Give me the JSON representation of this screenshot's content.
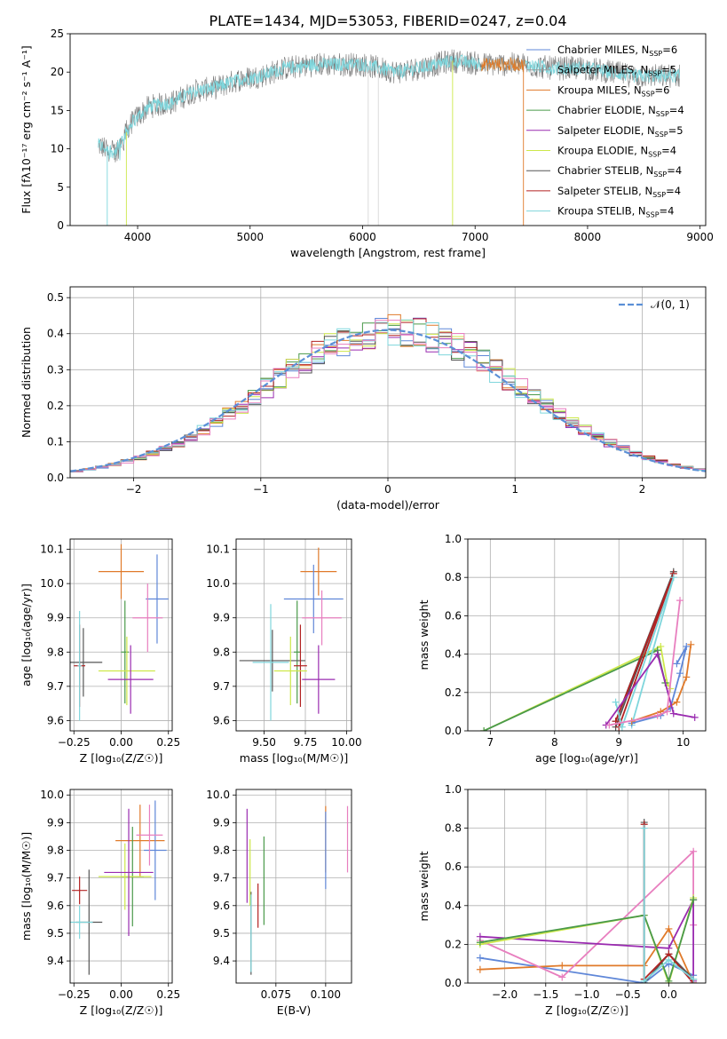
{
  "figure_title": "PLATE=1434, MJD=53053, FIBERID=0247, z=0.04",
  "colors": {
    "chab_miles": "#5f87d8",
    "salp_miles": "#d7d7d7",
    "krou_miles": "#e07a2a",
    "chab_elodie": "#4a9a4a",
    "salp_elodie": "#9a2bb0",
    "krou_elodie": "#cde84a",
    "chab_stelib": "#555555",
    "salp_stelib": "#b22222",
    "krou_stelib": "#7fd6dc",
    "pink": "#e87fbf",
    "gaussian": "#5b8fd6"
  },
  "legend_spectrum": [
    {
      "pre": "Chabrier MILES, N",
      "sub": "SSP",
      "post": "=6",
      "color": "#5f87d8"
    },
    {
      "pre": "Salpeter MILES, N",
      "sub": "SSP",
      "post": "=5",
      "color": "#999999"
    },
    {
      "pre": "Kroupa MILES, N",
      "sub": "SSP",
      "post": "=6",
      "color": "#e07a2a"
    },
    {
      "pre": "Chabrier ELODIE, N",
      "sub": "SSP",
      "post": "=4",
      "color": "#4a9a4a"
    },
    {
      "pre": "Salpeter ELODIE, N",
      "sub": "SSP",
      "post": "=5",
      "color": "#9a2bb0"
    },
    {
      "pre": "Kroupa ELODIE, N",
      "sub": "SSP",
      "post": "=4",
      "color": "#cde84a"
    },
    {
      "pre": "Chabrier STELIB, N",
      "sub": "SSP",
      "post": "=4",
      "color": "#555555"
    },
    {
      "pre": "Salpeter STELIB, N",
      "sub": "SSP",
      "post": "=4",
      "color": "#b22222"
    },
    {
      "pre": "Kroupa STELIB, N",
      "sub": "SSP",
      "post": "=4",
      "color": "#7fd6dc"
    }
  ],
  "legend_hist": "𝒩(0, 1)",
  "chart_data": [
    {
      "id": "spectrum",
      "type": "line",
      "xlabel": "wavelength [Angstrom, rest frame]",
      "ylabel": "Flux [fλ10⁻¹⁷ erg cm⁻² s⁻¹ A⁻¹]",
      "xlim": [
        3400,
        9050
      ],
      "ylim": [
        0,
        25
      ],
      "xticks": [
        4000,
        5000,
        6000,
        7000,
        8000,
        9000
      ],
      "yticks": [
        0,
        5,
        10,
        15,
        20,
        25
      ],
      "wave_range": [
        3650,
        8820
      ],
      "continuum": [
        [
          3650,
          10.5
        ],
        [
          3800,
          9.5
        ],
        [
          3950,
          13.5
        ],
        [
          4100,
          15.5
        ],
        [
          4300,
          16.0
        ],
        [
          4500,
          17.5
        ],
        [
          4700,
          18.0
        ],
        [
          4900,
          19.0
        ],
        [
          5100,
          19.5
        ],
        [
          5300,
          20.5
        ],
        [
          5600,
          21.0
        ],
        [
          5800,
          21.0
        ],
        [
          6000,
          21.0
        ],
        [
          6300,
          20.0
        ],
        [
          6500,
          20.5
        ],
        [
          6800,
          21.5
        ],
        [
          7100,
          21.0
        ],
        [
          7400,
          21.0
        ],
        [
          7700,
          20.5
        ],
        [
          8000,
          20.5
        ],
        [
          8400,
          19.5
        ],
        [
          8820,
          19.5
        ]
      ],
      "gaps": [
        {
          "x": 3730,
          "min": 0,
          "color": "#7fd6dc"
        },
        {
          "x": 3900,
          "min": 0,
          "color": "#cde84a"
        },
        {
          "x": 6050,
          "min": 0,
          "color": "#d7d7d7"
        },
        {
          "x": 6140,
          "min": 0,
          "color": "#d7d7d7"
        },
        {
          "x": 6800,
          "min": 0,
          "color": "#cde84a"
        },
        {
          "x": 7430,
          "min": 0,
          "color": "#e07a2a"
        }
      ]
    },
    {
      "id": "residuals",
      "type": "histogram",
      "xlabel": "(data-model)/error",
      "ylabel": "Normed distribution",
      "xlim": [
        -2.5,
        2.5
      ],
      "ylim": [
        0,
        0.53
      ],
      "xticks": [
        -2,
        -1,
        0,
        1,
        2
      ],
      "yticks": [
        0.0,
        0.1,
        0.2,
        0.3,
        0.4,
        0.5
      ],
      "bin_width": 0.1,
      "peak": 0.41,
      "gaussian_sigma": 1.0
    },
    {
      "id": "z_age",
      "type": "errorbar",
      "xlabel": "Z [log₁₀(Z/Z☉)]",
      "ylabel": "age  [log₁₀(age/yr)]",
      "xlim": [
        -0.27,
        0.27
      ],
      "ylim": [
        9.57,
        10.13
      ],
      "xticks": [
        -0.25,
        0.0,
        0.25
      ],
      "yticks": [
        9.6,
        9.7,
        9.8,
        9.9,
        10.0,
        10.1
      ],
      "points": [
        {
          "x": 0.0,
          "y": 10.035,
          "xerr": 0.12,
          "yerr": 0.08,
          "c": "#e07a2a"
        },
        {
          "x": 0.19,
          "y": 9.955,
          "xerr": 0.06,
          "yerr": 0.13,
          "c": "#5f87d8"
        },
        {
          "x": 0.14,
          "y": 9.9,
          "xerr": 0.08,
          "yerr": 0.1,
          "c": "#e87fbf"
        },
        {
          "x": 0.02,
          "y": 9.8,
          "xerr": 0.02,
          "yerr": 0.15,
          "c": "#4a9a4a"
        },
        {
          "x": -0.2,
          "y": 9.77,
          "xerr": 0.1,
          "yerr": 0.1,
          "c": "#555555"
        },
        {
          "x": -0.22,
          "y": 9.76,
          "xerr": 0.03,
          "yerr": 0.12,
          "c": "#b22222"
        },
        {
          "x": 0.03,
          "y": 9.745,
          "xerr": 0.15,
          "yerr": 0.1,
          "c": "#cde84a"
        },
        {
          "x": -0.22,
          "y": 9.76,
          "xerr": 0.01,
          "yerr": 0.16,
          "c": "#7fd6dc"
        },
        {
          "x": 0.05,
          "y": 9.72,
          "xerr": 0.12,
          "yerr": 0.1,
          "c": "#9a2bb0"
        }
      ]
    },
    {
      "id": "mass_age",
      "type": "errorbar",
      "xlabel": "mass [log₁₀(M/M☉)]",
      "ylabel": "",
      "xlim": [
        9.33,
        10.03
      ],
      "ylim": [
        9.57,
        10.13
      ],
      "xticks": [
        9.5,
        9.75,
        10.0
      ],
      "yticks": [
        9.6,
        9.7,
        9.8,
        9.9,
        10.0,
        10.1
      ],
      "points": [
        {
          "x": 9.83,
          "y": 10.035,
          "xerr": 0.11,
          "yerr": 0.07,
          "c": "#e07a2a"
        },
        {
          "x": 9.8,
          "y": 9.955,
          "xerr": 0.18,
          "yerr": 0.1,
          "c": "#5f87d8"
        },
        {
          "x": 9.85,
          "y": 9.9,
          "xerr": 0.12,
          "yerr": 0.08,
          "c": "#e87fbf"
        },
        {
          "x": 9.7,
          "y": 9.8,
          "xerr": 0.02,
          "yerr": 0.15,
          "c": "#4a9a4a"
        },
        {
          "x": 9.55,
          "y": 9.775,
          "xerr": 0.2,
          "yerr": 0.09,
          "c": "#555555"
        },
        {
          "x": 9.72,
          "y": 9.76,
          "xerr": 0.04,
          "yerr": 0.12,
          "c": "#b22222"
        },
        {
          "x": 9.66,
          "y": 9.745,
          "xerr": 0.1,
          "yerr": 0.1,
          "c": "#cde84a"
        },
        {
          "x": 9.54,
          "y": 9.77,
          "xerr": 0.11,
          "yerr": 0.17,
          "c": "#7fd6dc"
        },
        {
          "x": 9.83,
          "y": 9.72,
          "xerr": 0.1,
          "yerr": 0.1,
          "c": "#9a2bb0"
        }
      ]
    },
    {
      "id": "age_weight",
      "type": "line",
      "xlabel": "age  [log₁₀(age/yr)]",
      "ylabel": "mass weight",
      "xlim": [
        6.65,
        10.35
      ],
      "ylim": [
        0,
        1.0
      ],
      "xticks": [
        7,
        8,
        9,
        10
      ],
      "yticks": [
        0.0,
        0.2,
        0.4,
        0.6,
        0.8,
        1.0
      ],
      "series": [
        {
          "c": "#cde84a",
          "pts": [
            [
              6.9,
              0.0
            ],
            [
              9.65,
              0.44
            ],
            [
              9.75,
              0.25
            ],
            [
              9.8,
              0.22
            ]
          ]
        },
        {
          "c": "#4a9a4a",
          "pts": [
            [
              6.9,
              0.0
            ],
            [
              9.6,
              0.42
            ],
            [
              9.72,
              0.25
            ]
          ]
        },
        {
          "c": "#555555",
          "pts": [
            [
              8.95,
              0.02
            ],
            [
              9.85,
              0.83
            ],
            [
              8.95,
              0.05
            ]
          ]
        },
        {
          "c": "#b22222",
          "pts": [
            [
              8.95,
              0.05
            ],
            [
              9.85,
              0.82
            ],
            [
              9.0,
              0.02
            ]
          ]
        },
        {
          "c": "#7fd6dc",
          "pts": [
            [
              8.95,
              0.15
            ],
            [
              9.05,
              0.02
            ],
            [
              9.85,
              0.8
            ],
            [
              9.2,
              0.03
            ]
          ]
        },
        {
          "c": "#5f87d8",
          "pts": [
            [
              9.2,
              0.04
            ],
            [
              9.65,
              0.08
            ],
            [
              9.8,
              0.12
            ],
            [
              9.95,
              0.3
            ],
            [
              10.05,
              0.44
            ],
            [
              9.9,
              0.35
            ]
          ]
        },
        {
          "c": "#e07a2a",
          "pts": [
            [
              9.2,
              0.05
            ],
            [
              9.65,
              0.1
            ],
            [
              9.9,
              0.15
            ],
            [
              10.05,
              0.28
            ],
            [
              10.12,
              0.45
            ]
          ]
        },
        {
          "c": "#9a2bb0",
          "pts": [
            [
              8.8,
              0.03
            ],
            [
              9.6,
              0.4
            ],
            [
              9.85,
              0.09
            ],
            [
              10.18,
              0.07
            ]
          ]
        },
        {
          "c": "#e87fbf",
          "pts": [
            [
              8.85,
              0.03
            ],
            [
              9.6,
              0.08
            ],
            [
              9.75,
              0.1
            ],
            [
              9.95,
              0.68
            ]
          ]
        }
      ]
    },
    {
      "id": "z_mass",
      "type": "errorbar",
      "xlabel": "Z [log₁₀(Z/Z☉)]",
      "ylabel": "mass [log₁₀(M/M☉)]",
      "xlim": [
        -0.27,
        0.27
      ],
      "ylim": [
        9.32,
        10.02
      ],
      "xticks": [
        -0.25,
        0.0,
        0.25
      ],
      "yticks": [
        9.4,
        9.5,
        9.6,
        9.7,
        9.8,
        9.9,
        10.0
      ],
      "points": [
        {
          "x": 0.1,
          "y": 9.835,
          "xerr": 0.13,
          "yerr": 0.13,
          "c": "#e07a2a"
        },
        {
          "x": 0.18,
          "y": 9.8,
          "xerr": 0.06,
          "yerr": 0.18,
          "c": "#5f87d8"
        },
        {
          "x": 0.15,
          "y": 9.855,
          "xerr": 0.07,
          "yerr": 0.11,
          "c": "#e87fbf"
        },
        {
          "x": 0.06,
          "y": 9.705,
          "xerr": 0.06,
          "yerr": 0.18,
          "c": "#4a9a4a"
        },
        {
          "x": -0.17,
          "y": 9.54,
          "xerr": 0.07,
          "yerr": 0.19,
          "c": "#555555"
        },
        {
          "x": -0.22,
          "y": 9.655,
          "xerr": 0.04,
          "yerr": 0.05,
          "c": "#b22222"
        },
        {
          "x": 0.02,
          "y": 9.705,
          "xerr": 0.14,
          "yerr": 0.12,
          "c": "#cde84a"
        },
        {
          "x": -0.22,
          "y": 9.54,
          "xerr": 0.07,
          "yerr": 0.06,
          "c": "#7fd6dc"
        },
        {
          "x": 0.04,
          "y": 9.72,
          "xerr": 0.13,
          "yerr": 0.23,
          "c": "#9a2bb0"
        }
      ]
    },
    {
      "id": "ebv_mass",
      "type": "errorbar",
      "xlabel": "E(B-V)",
      "ylabel": "",
      "xlim": [
        0.055,
        0.113
      ],
      "ylim": [
        9.32,
        10.02
      ],
      "xticks": [
        0.075,
        0.1
      ],
      "yticks": [
        9.4,
        9.5,
        9.6,
        9.7,
        9.8,
        9.9,
        10.0
      ],
      "points": [
        {
          "x": 0.1,
          "y": 9.84,
          "xerr": 0.0,
          "yerr": 0.12,
          "c": "#e07a2a"
        },
        {
          "x": 0.1,
          "y": 9.8,
          "xerr": 0.0,
          "yerr": 0.14,
          "c": "#5f87d8"
        },
        {
          "x": 0.111,
          "y": 9.84,
          "xerr": 0.0,
          "yerr": 0.12,
          "c": "#e87fbf"
        },
        {
          "x": 0.069,
          "y": 9.69,
          "xerr": 0.0,
          "yerr": 0.16,
          "c": "#4a9a4a"
        },
        {
          "x": 0.0625,
          "y": 9.5,
          "xerr": 0.0,
          "yerr": 0.15,
          "c": "#555555"
        },
        {
          "x": 0.066,
          "y": 9.6,
          "xerr": 0.0,
          "yerr": 0.08,
          "c": "#b22222"
        },
        {
          "x": 0.062,
          "y": 9.72,
          "xerr": 0.0,
          "yerr": 0.12,
          "c": "#cde84a"
        },
        {
          "x": 0.0625,
          "y": 9.5,
          "xerr": 0.0,
          "yerr": 0.14,
          "c": "#7fd6dc"
        },
        {
          "x": 0.0605,
          "y": 9.78,
          "xerr": 0.0,
          "yerr": 0.17,
          "c": "#9a2bb0"
        }
      ]
    },
    {
      "id": "z_weight",
      "type": "line",
      "xlabel": "Z [log₁₀(Z/Z☉)]",
      "ylabel": "mass weight",
      "xlim": [
        -2.45,
        0.45
      ],
      "ylim": [
        0,
        1.0
      ],
      "xticks": [
        -2.0,
        -1.5,
        -1.0,
        -0.5,
        0.0
      ],
      "yticks": [
        0.0,
        0.2,
        0.4,
        0.6,
        0.8,
        1.0
      ],
      "series": [
        {
          "c": "#5f87d8",
          "pts": [
            [
              -2.3,
              0.13
            ],
            [
              -0.3,
              0.0
            ],
            [
              0.0,
              0.1
            ],
            [
              0.3,
              0.04
            ]
          ]
        },
        {
          "c": "#e07a2a",
          "pts": [
            [
              -2.3,
              0.07
            ],
            [
              -1.3,
              0.09
            ],
            [
              -0.3,
              0.09
            ],
            [
              0.0,
              0.28
            ],
            [
              0.3,
              0.0
            ]
          ]
        },
        {
          "c": "#e87fbf",
          "pts": [
            [
              -2.3,
              0.22
            ],
            [
              -1.3,
              0.03
            ],
            [
              0.3,
              0.68
            ],
            [
              0.3,
              0.3
            ]
          ]
        },
        {
          "c": "#9a2bb0",
          "pts": [
            [
              -2.3,
              0.24
            ],
            [
              0.0,
              0.18
            ],
            [
              0.3,
              0.43
            ],
            [
              0.3,
              0.01
            ]
          ]
        },
        {
          "c": "#cde84a",
          "pts": [
            [
              -2.3,
              0.2
            ],
            [
              -0.3,
              0.35
            ],
            [
              0.0,
              0.0
            ],
            [
              0.3,
              0.44
            ]
          ]
        },
        {
          "c": "#4a9a4a",
          "pts": [
            [
              -2.3,
              0.21
            ],
            [
              -0.3,
              0.35
            ],
            [
              0.0,
              0.01
            ],
            [
              0.3,
              0.43
            ]
          ]
        },
        {
          "c": "#555555",
          "pts": [
            [
              -0.3,
              0.83
            ],
            [
              -0.3,
              0.0
            ],
            [
              0.0,
              0.15
            ],
            [
              0.3,
              0.02
            ]
          ]
        },
        {
          "c": "#b22222",
          "pts": [
            [
              -0.3,
              0.82
            ],
            [
              -0.3,
              0.02
            ],
            [
              0.0,
              0.15
            ],
            [
              0.3,
              0.0
            ]
          ]
        },
        {
          "c": "#7fd6dc",
          "pts": [
            [
              -0.3,
              0.8
            ],
            [
              -0.3,
              0.01
            ],
            [
              0.0,
              0.12
            ],
            [
              0.3,
              0.02
            ]
          ]
        }
      ]
    }
  ]
}
